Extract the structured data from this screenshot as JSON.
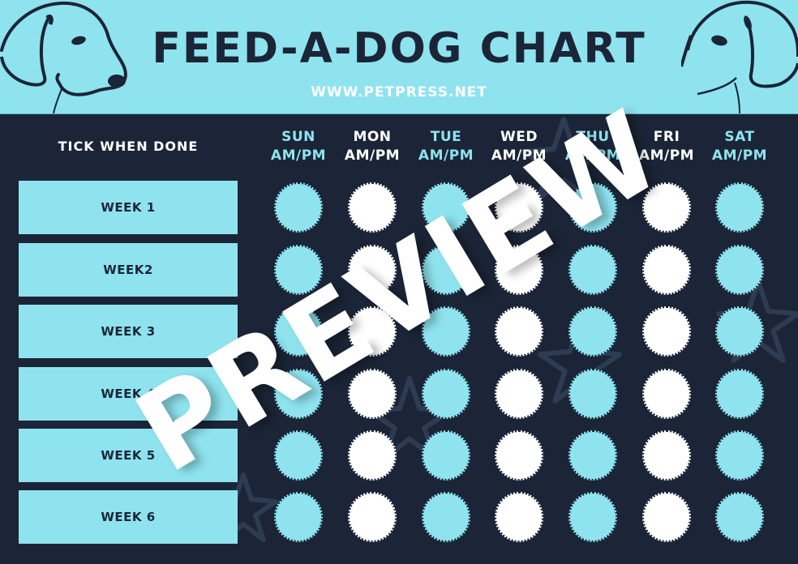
{
  "header": {
    "title": "FEED-A-DOG CHART",
    "url": "WWW.PETPRESS.NET"
  },
  "colors": {
    "cyan": "#8ee3ee",
    "navy": "#1b2537",
    "white": "#ffffff"
  },
  "sidebar": {
    "label": "TICK WHEN DONE",
    "weeks": [
      "WEEK 1",
      "WEEK2",
      "WEEK 3",
      "WEEK 4",
      "WEEK 5",
      "WEEK 6"
    ]
  },
  "days": [
    {
      "name": "SUN",
      "sub": "AM/PM",
      "color": "#8ee3ee"
    },
    {
      "name": "MON",
      "sub": "AM/PM",
      "color": "#ffffff"
    },
    {
      "name": "TUE",
      "sub": "AM/PM",
      "color": "#8ee3ee"
    },
    {
      "name": "WED",
      "sub": "AM/PM",
      "color": "#ffffff"
    },
    {
      "name": "THU",
      "sub": "AM/PM",
      "color": "#8ee3ee"
    },
    {
      "name": "FRI",
      "sub": "AM/PM",
      "color": "#ffffff"
    },
    {
      "name": "SAT",
      "sub": "AM/PM",
      "color": "#8ee3ee"
    }
  ],
  "grid": {
    "rows": 6,
    "cols": 7,
    "column_colors": [
      "#8ee3ee",
      "#ffffff",
      "#8ee3ee",
      "#ffffff",
      "#8ee3ee",
      "#ffffff",
      "#8ee3ee"
    ]
  },
  "watermark": "PREVIEW",
  "icons": {
    "left": "dog-head-icon",
    "right": "dog-head-icon"
  }
}
